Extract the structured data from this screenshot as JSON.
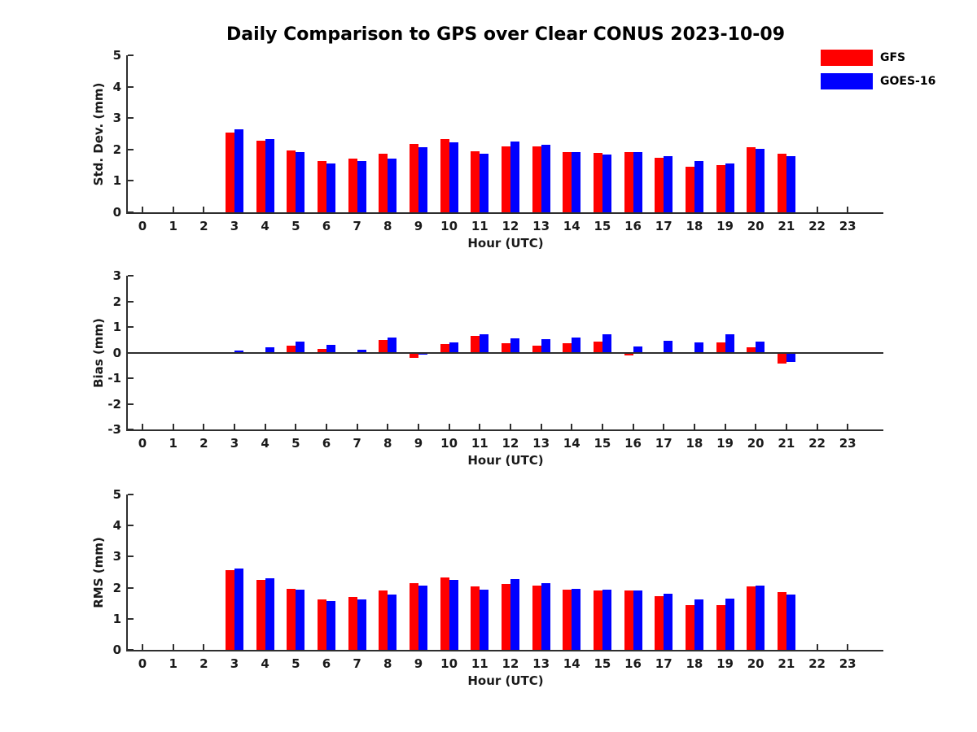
{
  "title": "Daily Comparison to GPS over Clear CONUS 2023-10-09",
  "legend": {
    "items": [
      {
        "label": "GFS",
        "color": "#ff0000"
      },
      {
        "label": "GOES-16",
        "color": "#0000ff"
      }
    ]
  },
  "colors": {
    "gfs": "#ff0000",
    "goes16": "#0000ff",
    "axis": "#2e2e2e",
    "background": "#ffffff"
  },
  "chart_data": [
    {
      "type": "bar",
      "panel": "std-dev",
      "ylabel": "Std. Dev. (mm)",
      "xlabel": "Hour (UTC)",
      "ylim": [
        0,
        5
      ],
      "yticks": [
        0,
        1,
        2,
        3,
        4,
        5
      ],
      "grid": false,
      "legend_position": "top-right",
      "categories": [
        0,
        1,
        2,
        3,
        4,
        5,
        6,
        7,
        8,
        9,
        10,
        11,
        12,
        13,
        14,
        15,
        16,
        17,
        18,
        19,
        20,
        21,
        22,
        23
      ],
      "series": [
        {
          "name": "GFS",
          "color": "#ff0000",
          "values": [
            null,
            null,
            null,
            2.55,
            2.27,
            1.97,
            1.63,
            1.72,
            1.87,
            2.17,
            2.32,
            1.94,
            2.11,
            2.09,
            1.93,
            1.88,
            1.93,
            1.73,
            1.45,
            1.49,
            2.07,
            1.86,
            null,
            null
          ]
        },
        {
          "name": "GOES-16",
          "color": "#0000ff",
          "values": [
            null,
            null,
            null,
            2.64,
            2.34,
            1.93,
            1.55,
            1.63,
            1.72,
            2.07,
            2.23,
            1.87,
            2.26,
            2.14,
            1.91,
            1.84,
            1.91,
            1.78,
            1.63,
            1.56,
            2.03,
            1.78,
            null,
            null
          ]
        }
      ]
    },
    {
      "type": "bar",
      "panel": "bias",
      "ylabel": "Bias (mm)",
      "xlabel": "Hour (UTC)",
      "ylim": [
        -3,
        3
      ],
      "yticks": [
        -3,
        -2,
        -1,
        0,
        1,
        2,
        3
      ],
      "grid": false,
      "zero_line": true,
      "categories": [
        0,
        1,
        2,
        3,
        4,
        5,
        6,
        7,
        8,
        9,
        10,
        11,
        12,
        13,
        14,
        15,
        16,
        17,
        18,
        19,
        20,
        21,
        22,
        23
      ],
      "series": [
        {
          "name": "GFS",
          "color": "#ff0000",
          "values": [
            null,
            null,
            null,
            -0.05,
            -0.06,
            0.27,
            0.15,
            0.02,
            0.5,
            -0.22,
            0.32,
            0.64,
            0.35,
            0.26,
            0.35,
            0.44,
            -0.12,
            -0.03,
            0.02,
            0.4,
            0.22,
            -0.42,
            null,
            null
          ]
        },
        {
          "name": "GOES-16",
          "color": "#0000ff",
          "values": [
            null,
            null,
            null,
            0.08,
            0.22,
            0.42,
            0.3,
            0.1,
            0.58,
            -0.08,
            0.4,
            0.73,
            0.54,
            0.52,
            0.58,
            0.7,
            0.24,
            0.46,
            0.41,
            0.7,
            0.43,
            -0.35,
            null,
            null
          ]
        }
      ]
    },
    {
      "type": "bar",
      "panel": "rms",
      "ylabel": "RMS (mm)",
      "xlabel": "Hour (UTC)",
      "ylim": [
        0,
        5
      ],
      "yticks": [
        0,
        1,
        2,
        3,
        4,
        5
      ],
      "grid": false,
      "categories": [
        0,
        1,
        2,
        3,
        4,
        5,
        6,
        7,
        8,
        9,
        10,
        11,
        12,
        13,
        14,
        15,
        16,
        17,
        18,
        19,
        20,
        21,
        22,
        23
      ],
      "series": [
        {
          "name": "GFS",
          "color": "#ff0000",
          "values": [
            null,
            null,
            null,
            2.56,
            2.24,
            1.97,
            1.63,
            1.7,
            1.91,
            2.15,
            2.32,
            2.03,
            2.11,
            2.08,
            1.95,
            1.9,
            1.92,
            1.72,
            1.43,
            1.45,
            2.04,
            1.86,
            null,
            null
          ]
        },
        {
          "name": "GOES-16",
          "color": "#0000ff",
          "values": [
            null,
            null,
            null,
            2.62,
            2.3,
            1.94,
            1.56,
            1.61,
            1.78,
            2.06,
            2.25,
            1.95,
            2.28,
            2.15,
            1.97,
            1.93,
            1.92,
            1.8,
            1.62,
            1.66,
            2.08,
            1.79,
            null,
            null
          ]
        }
      ]
    }
  ]
}
